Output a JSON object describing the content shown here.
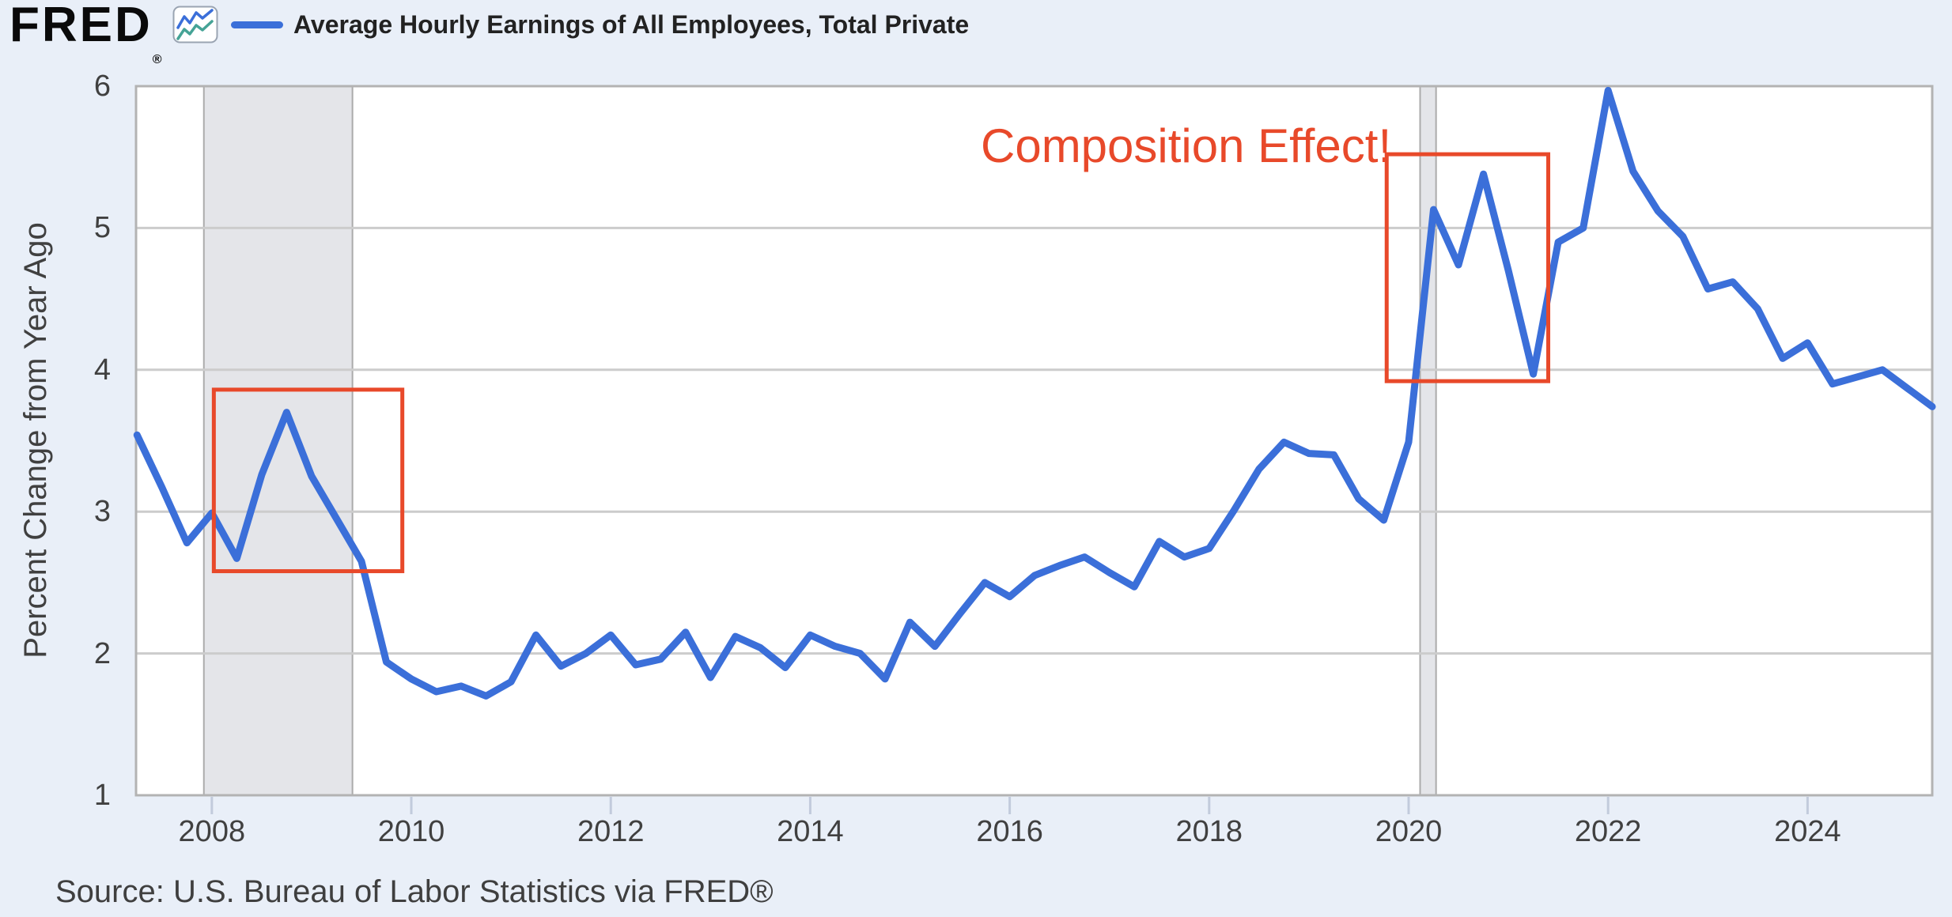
{
  "header": {
    "logo": "FRED",
    "registered": "®",
    "legend_label": "Average Hourly Earnings of All Employees, Total Private"
  },
  "annotation": {
    "text": "Composition Effect!",
    "color": "#e8492a"
  },
  "source": {
    "text": "Source: U.S. Bureau of Labor Statistics via FRED®"
  },
  "chart_data": {
    "type": "line",
    "title": "",
    "xlabel": "",
    "ylabel": "Percent Change from Year Ago",
    "xlim": [
      2007.24,
      2025.25
    ],
    "ylim": [
      1,
      6
    ],
    "x_ticks": [
      2008,
      2010,
      2012,
      2014,
      2016,
      2018,
      2020,
      2022,
      2024
    ],
    "y_ticks": [
      6,
      5,
      4,
      3,
      2,
      1
    ],
    "grid": true,
    "legend_position": "top-left",
    "colors": {
      "line": "#3b6fd9",
      "grid": "#cccccc",
      "border": "#b3b3b3",
      "plot_bg": "#ffffff",
      "page_bg": "#e9eff8",
      "recession_band": "#e4e5e9",
      "recession_edge": "#ababab",
      "tick": "#c2cbdc",
      "annotation_box": "#e8492a"
    },
    "recession_bands": [
      [
        2007.92,
        2009.41
      ],
      [
        2020.115,
        2020.275
      ]
    ],
    "annotation_boxes": [
      {
        "x1": 2008.02,
        "y1": 2.58,
        "x2": 2009.91,
        "y2": 3.86
      },
      {
        "x1": 2019.78,
        "y1": 3.92,
        "x2": 2021.4,
        "y2": 5.52
      }
    ],
    "series": [
      {
        "name": "Average Hourly Earnings of All Employees, Total Private",
        "color": "#3b6fd9",
        "frequency": "quarterly",
        "points": [
          [
            2007.25,
            3.54
          ],
          [
            2007.5,
            3.17
          ],
          [
            2007.75,
            2.78
          ],
          [
            2008,
            2.99
          ],
          [
            2008.25,
            2.67
          ],
          [
            2008.5,
            3.26
          ],
          [
            2008.75,
            3.7
          ],
          [
            2009,
            3.25
          ],
          [
            2009.25,
            2.95
          ],
          [
            2009.5,
            2.65
          ],
          [
            2009.75,
            1.94
          ],
          [
            2010,
            1.82
          ],
          [
            2010.25,
            1.73
          ],
          [
            2010.5,
            1.77
          ],
          [
            2010.75,
            1.7
          ],
          [
            2011,
            1.8
          ],
          [
            2011.25,
            2.13
          ],
          [
            2011.5,
            1.91
          ],
          [
            2011.75,
            2
          ],
          [
            2012,
            2.13
          ],
          [
            2012.25,
            1.92
          ],
          [
            2012.5,
            1.96
          ],
          [
            2012.75,
            2.15
          ],
          [
            2013,
            1.83
          ],
          [
            2013.25,
            2.12
          ],
          [
            2013.5,
            2.04
          ],
          [
            2013.75,
            1.9
          ],
          [
            2014,
            2.13
          ],
          [
            2014.25,
            2.05
          ],
          [
            2014.5,
            2
          ],
          [
            2014.75,
            1.82
          ],
          [
            2015,
            2.22
          ],
          [
            2015.25,
            2.05
          ],
          [
            2015.5,
            2.28
          ],
          [
            2015.75,
            2.5
          ],
          [
            2016,
            2.4
          ],
          [
            2016.25,
            2.55
          ],
          [
            2016.5,
            2.62
          ],
          [
            2016.75,
            2.68
          ],
          [
            2017,
            2.57
          ],
          [
            2017.25,
            2.47
          ],
          [
            2017.5,
            2.79
          ],
          [
            2017.75,
            2.68
          ],
          [
            2018,
            2.74
          ],
          [
            2018.25,
            3.01
          ],
          [
            2018.5,
            3.3
          ],
          [
            2018.75,
            3.49
          ],
          [
            2019,
            3.41
          ],
          [
            2019.25,
            3.4
          ],
          [
            2019.5,
            3.09
          ],
          [
            2019.75,
            2.94
          ],
          [
            2020,
            3.49
          ],
          [
            2020.25,
            5.13
          ],
          [
            2020.5,
            4.74
          ],
          [
            2020.75,
            5.38
          ],
          [
            2021,
            4.7
          ],
          [
            2021.25,
            3.97
          ],
          [
            2021.5,
            4.9
          ],
          [
            2021.75,
            5
          ],
          [
            2022,
            5.97
          ],
          [
            2022.25,
            5.4
          ],
          [
            2022.5,
            5.12
          ],
          [
            2022.75,
            4.94
          ],
          [
            2023,
            4.57
          ],
          [
            2023.25,
            4.62
          ],
          [
            2023.5,
            4.43
          ],
          [
            2023.75,
            4.08
          ],
          [
            2024,
            4.19
          ],
          [
            2024.25,
            3.9
          ],
          [
            2024.5,
            3.95
          ],
          [
            2024.75,
            4
          ],
          [
            2025,
            3.87
          ],
          [
            2025.25,
            3.74
          ]
        ]
      }
    ]
  }
}
